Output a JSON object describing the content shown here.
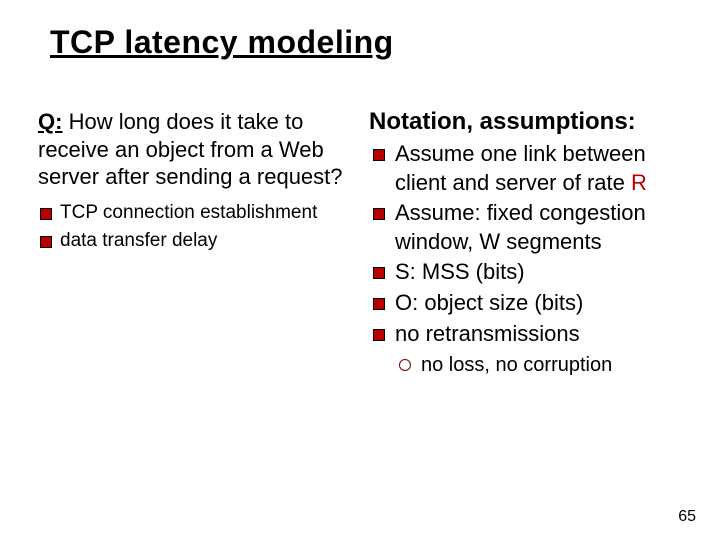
{
  "title": "TCP latency modeling",
  "left": {
    "q_label": "Q:",
    "question_rest": " How long does it take to receive an object from a Web server after sending a request?",
    "sub_bullets": [
      "TCP connection establishment",
      "data transfer delay"
    ]
  },
  "right": {
    "heading": "Notation, assumptions:",
    "bullets": [
      {
        "pre": "Assume one link between client and server of rate ",
        "R": "R",
        "post": ""
      },
      {
        "pre": "Assume: fixed congestion window, W segments",
        "R": "",
        "post": ""
      },
      {
        "pre": "S: MSS (bits)",
        "R": "",
        "post": ""
      },
      {
        "pre": "O: object size (bits)",
        "R": "",
        "post": ""
      },
      {
        "pre": "no retransmissions",
        "R": "",
        "post": ""
      }
    ],
    "sub_bullets": [
      "no loss, no corruption"
    ]
  },
  "page_number": "65",
  "colors": {
    "bullet_fill": "#b80000",
    "rate_R": "#b80000",
    "text": "#000000",
    "background": "#ffffff"
  },
  "fontsizes": {
    "title": 32,
    "question": 22,
    "left_sub": 19,
    "heading": 24,
    "right_bullet": 22,
    "right_sub": 20,
    "page_num": 16
  }
}
